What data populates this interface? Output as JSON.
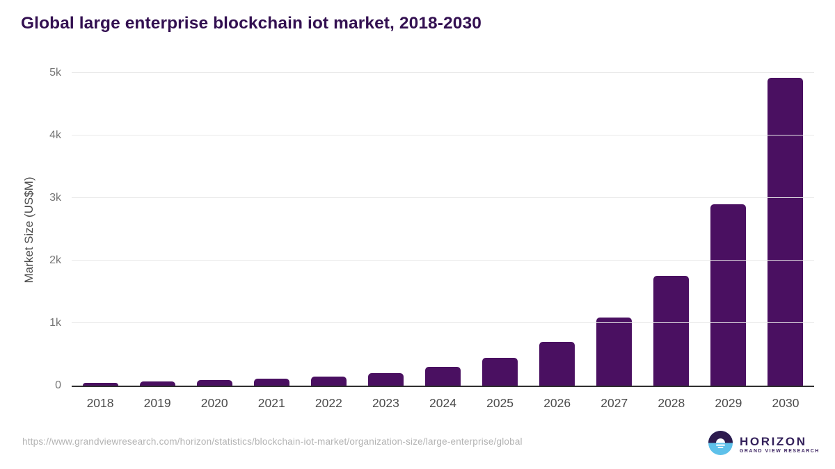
{
  "chart_data": {
    "type": "bar",
    "title": "Global large enterprise blockchain iot market, 2018-2030",
    "categories": [
      "2018",
      "2019",
      "2020",
      "2021",
      "2022",
      "2023",
      "2024",
      "2025",
      "2026",
      "2027",
      "2028",
      "2029",
      "2030"
    ],
    "values": [
      48,
      65,
      90,
      110,
      145,
      200,
      295,
      450,
      695,
      1090,
      1755,
      2900,
      4925
    ],
    "xlabel": "",
    "ylabel": "Market Size (US$M)",
    "ylim": [
      0,
      5000
    ],
    "yticks": [
      {
        "value": 0,
        "label": "0"
      },
      {
        "value": 1000,
        "label": "1k"
      },
      {
        "value": 2000,
        "label": "2k"
      },
      {
        "value": 3000,
        "label": "3k"
      },
      {
        "value": 4000,
        "label": "4k"
      },
      {
        "value": 5000,
        "label": "5k"
      }
    ],
    "grid": "horizontal",
    "legend": "none"
  },
  "footer": {
    "source_url": "https://www.grandviewresearch.com/horizon/statistics/blockchain-iot-market/organization-size/large-enterprise/global",
    "logo": {
      "name": "HORIZON",
      "subtitle": "GRAND VIEW RESEARCH"
    }
  },
  "colors": {
    "bar": "#4a1061",
    "title": "#331051",
    "axis_line": "#2f2f2f",
    "gridline": "#e9e9e9",
    "ytick_label": "#757575",
    "xtick_label": "#4d4d4d",
    "url_text": "#b3b3b3",
    "logo_purple": "#2d1b4e",
    "logo_blue": "#5ec1ea"
  }
}
